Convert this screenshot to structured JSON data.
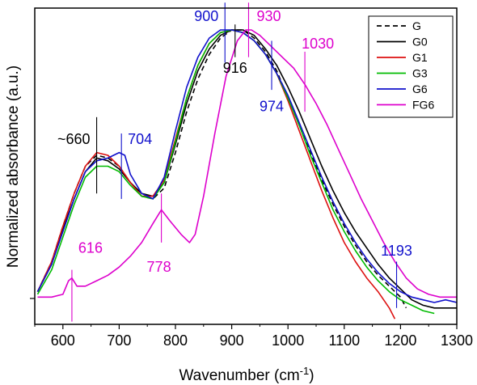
{
  "chart_data": {
    "type": "line",
    "title": "",
    "xlabel": "Wavenumber (cm",
    "xlabel_sup": "-1",
    "xlabel_end": ")",
    "ylabel": "Normalized absorbance (a.u.)",
    "xlim": [
      550,
      1300
    ],
    "ylim": [
      -0.08,
      1.08
    ],
    "x_ticks": [
      "600",
      "700",
      "800",
      "900",
      "1000",
      "1100",
      "1200",
      "1300"
    ],
    "legend_position": "top-right",
    "series": [
      {
        "name": "G",
        "color": "#000000",
        "dash": "6,4",
        "points": [
          [
            555,
            0.04
          ],
          [
            580,
            0.15
          ],
          [
            600,
            0.28
          ],
          [
            620,
            0.4
          ],
          [
            640,
            0.5
          ],
          [
            660,
            0.54
          ],
          [
            680,
            0.53
          ],
          [
            700,
            0.5
          ],
          [
            720,
            0.44
          ],
          [
            740,
            0.39
          ],
          [
            760,
            0.38
          ],
          [
            780,
            0.42
          ],
          [
            800,
            0.55
          ],
          [
            820,
            0.7
          ],
          [
            840,
            0.82
          ],
          [
            860,
            0.91
          ],
          [
            880,
            0.97
          ],
          [
            900,
            1.0
          ],
          [
            920,
            1.0
          ],
          [
            940,
            0.97
          ],
          [
            960,
            0.92
          ],
          [
            980,
            0.85
          ],
          [
            1000,
            0.75
          ],
          [
            1020,
            0.65
          ],
          [
            1040,
            0.55
          ],
          [
            1060,
            0.45
          ],
          [
            1080,
            0.36
          ],
          [
            1100,
            0.28
          ],
          [
            1120,
            0.21
          ],
          [
            1140,
            0.15
          ],
          [
            1160,
            0.1
          ],
          [
            1180,
            0.06
          ],
          [
            1200,
            0.02
          ],
          [
            1210,
            -0.02
          ]
        ]
      },
      {
        "name": "G0",
        "color": "#000000",
        "dash": "",
        "points": [
          [
            555,
            0.04
          ],
          [
            580,
            0.14
          ],
          [
            600,
            0.27
          ],
          [
            620,
            0.38
          ],
          [
            640,
            0.48
          ],
          [
            660,
            0.53
          ],
          [
            680,
            0.52
          ],
          [
            700,
            0.49
          ],
          [
            720,
            0.44
          ],
          [
            740,
            0.4
          ],
          [
            760,
            0.39
          ],
          [
            780,
            0.44
          ],
          [
            800,
            0.58
          ],
          [
            820,
            0.73
          ],
          [
            840,
            0.85
          ],
          [
            860,
            0.93
          ],
          [
            880,
            0.98
          ],
          [
            900,
            1.0
          ],
          [
            920,
            1.0
          ],
          [
            940,
            0.98
          ],
          [
            960,
            0.93
          ],
          [
            980,
            0.87
          ],
          [
            1000,
            0.79
          ],
          [
            1020,
            0.7
          ],
          [
            1040,
            0.6
          ],
          [
            1060,
            0.5
          ],
          [
            1080,
            0.41
          ],
          [
            1100,
            0.33
          ],
          [
            1120,
            0.26
          ],
          [
            1140,
            0.2
          ],
          [
            1160,
            0.14
          ],
          [
            1180,
            0.09
          ],
          [
            1200,
            0.05
          ],
          [
            1220,
            0.01
          ],
          [
            1240,
            -0.01
          ],
          [
            1260,
            -0.02
          ],
          [
            1280,
            -0.02
          ],
          [
            1300,
            -0.02
          ]
        ]
      },
      {
        "name": "G1",
        "color": "#dd1111",
        "dash": "",
        "points": [
          [
            555,
            0.04
          ],
          [
            580,
            0.15
          ],
          [
            600,
            0.28
          ],
          [
            620,
            0.4
          ],
          [
            640,
            0.5
          ],
          [
            660,
            0.55
          ],
          [
            680,
            0.54
          ],
          [
            700,
            0.5
          ],
          [
            720,
            0.44
          ],
          [
            740,
            0.39
          ],
          [
            760,
            0.39
          ],
          [
            780,
            0.45
          ],
          [
            800,
            0.6
          ],
          [
            820,
            0.75
          ],
          [
            840,
            0.87
          ],
          [
            860,
            0.95
          ],
          [
            880,
            0.99
          ],
          [
            900,
            1.0
          ],
          [
            920,
            0.99
          ],
          [
            940,
            0.96
          ],
          [
            960,
            0.91
          ],
          [
            980,
            0.84
          ],
          [
            1000,
            0.74
          ],
          [
            1020,
            0.63
          ],
          [
            1040,
            0.52
          ],
          [
            1060,
            0.41
          ],
          [
            1080,
            0.31
          ],
          [
            1100,
            0.22
          ],
          [
            1120,
            0.15
          ],
          [
            1140,
            0.09
          ],
          [
            1160,
            0.04
          ],
          [
            1180,
            -0.02
          ],
          [
            1190,
            -0.06
          ]
        ]
      },
      {
        "name": "G3",
        "color": "#00bb00",
        "dash": "",
        "points": [
          [
            555,
            0.03
          ],
          [
            580,
            0.12
          ],
          [
            600,
            0.24
          ],
          [
            620,
            0.36
          ],
          [
            640,
            0.46
          ],
          [
            660,
            0.5
          ],
          [
            680,
            0.5
          ],
          [
            700,
            0.48
          ],
          [
            720,
            0.43
          ],
          [
            740,
            0.39
          ],
          [
            760,
            0.38
          ],
          [
            780,
            0.44
          ],
          [
            800,
            0.59
          ],
          [
            820,
            0.75
          ],
          [
            840,
            0.87
          ],
          [
            860,
            0.95
          ],
          [
            880,
            0.99
          ],
          [
            900,
            1.0
          ],
          [
            920,
            0.99
          ],
          [
            940,
            0.96
          ],
          [
            960,
            0.91
          ],
          [
            980,
            0.84
          ],
          [
            1000,
            0.75
          ],
          [
            1020,
            0.65
          ],
          [
            1040,
            0.54
          ],
          [
            1060,
            0.44
          ],
          [
            1080,
            0.34
          ],
          [
            1100,
            0.26
          ],
          [
            1120,
            0.19
          ],
          [
            1140,
            0.13
          ],
          [
            1160,
            0.08
          ],
          [
            1180,
            0.04
          ],
          [
            1200,
            0.01
          ],
          [
            1220,
            -0.01
          ],
          [
            1240,
            -0.03
          ],
          [
            1260,
            -0.04
          ]
        ]
      },
      {
        "name": "G6",
        "color": "#1111cc",
        "dash": "",
        "points": [
          [
            555,
            0.04
          ],
          [
            580,
            0.14
          ],
          [
            600,
            0.26
          ],
          [
            620,
            0.38
          ],
          [
            640,
            0.48
          ],
          [
            660,
            0.52
          ],
          [
            680,
            0.53
          ],
          [
            700,
            0.55
          ],
          [
            710,
            0.54
          ],
          [
            720,
            0.47
          ],
          [
            740,
            0.4
          ],
          [
            760,
            0.38
          ],
          [
            780,
            0.46
          ],
          [
            800,
            0.63
          ],
          [
            820,
            0.79
          ],
          [
            840,
            0.9
          ],
          [
            860,
            0.97
          ],
          [
            880,
            1.0
          ],
          [
            900,
            1.0
          ],
          [
            920,
            0.99
          ],
          [
            940,
            0.96
          ],
          [
            960,
            0.91
          ],
          [
            980,
            0.84
          ],
          [
            1000,
            0.76
          ],
          [
            1020,
            0.66
          ],
          [
            1040,
            0.56
          ],
          [
            1060,
            0.46
          ],
          [
            1080,
            0.37
          ],
          [
            1100,
            0.29
          ],
          [
            1120,
            0.22
          ],
          [
            1140,
            0.16
          ],
          [
            1160,
            0.11
          ],
          [
            1180,
            0.07
          ],
          [
            1200,
            0.04
          ],
          [
            1220,
            0.02
          ],
          [
            1240,
            0.01
          ],
          [
            1260,
            0.0
          ],
          [
            1280,
            0.01
          ],
          [
            1300,
            0.0
          ]
        ]
      },
      {
        "name": "FG6",
        "color": "#dd00cc",
        "dash": "",
        "points": [
          [
            555,
            0.02
          ],
          [
            580,
            0.02
          ],
          [
            600,
            0.03
          ],
          [
            610,
            0.08
          ],
          [
            616,
            0.09
          ],
          [
            625,
            0.06
          ],
          [
            640,
            0.06
          ],
          [
            660,
            0.08
          ],
          [
            680,
            0.1
          ],
          [
            700,
            0.13
          ],
          [
            720,
            0.17
          ],
          [
            740,
            0.22
          ],
          [
            760,
            0.29
          ],
          [
            775,
            0.34
          ],
          [
            790,
            0.3
          ],
          [
            810,
            0.25
          ],
          [
            825,
            0.22
          ],
          [
            835,
            0.25
          ],
          [
            850,
            0.39
          ],
          [
            870,
            0.62
          ],
          [
            890,
            0.83
          ],
          [
            910,
            0.96
          ],
          [
            925,
            1.0
          ],
          [
            935,
            1.0
          ],
          [
            950,
            0.98
          ],
          [
            970,
            0.94
          ],
          [
            990,
            0.9
          ],
          [
            1010,
            0.86
          ],
          [
            1030,
            0.8
          ],
          [
            1050,
            0.73
          ],
          [
            1070,
            0.65
          ],
          [
            1090,
            0.56
          ],
          [
            1110,
            0.47
          ],
          [
            1130,
            0.38
          ],
          [
            1150,
            0.3
          ],
          [
            1170,
            0.22
          ],
          [
            1190,
            0.15
          ],
          [
            1210,
            0.09
          ],
          [
            1230,
            0.05
          ],
          [
            1250,
            0.03
          ],
          [
            1270,
            0.02
          ],
          [
            1300,
            0.02
          ]
        ]
      }
    ],
    "annotations": [
      {
        "text": "~660",
        "x": 660,
        "color": "#000000",
        "line_y": [
          0.4,
          0.68
        ],
        "label_anchor": "end",
        "label_dx": -8,
        "label_y": 0.6
      },
      {
        "text": "704",
        "x": 704,
        "color": "#1111cc",
        "line_y": [
          0.38,
          0.62
        ],
        "label_anchor": "start",
        "label_dx": 8,
        "label_y": 0.6
      },
      {
        "text": "900",
        "x": 888,
        "color": "#1111cc",
        "line_y": [
          0.88,
          1.1
        ],
        "label_anchor": "end",
        "label_dx": -8,
        "label_y": 1.05
      },
      {
        "text": "916",
        "x": 906,
        "color": "#000000",
        "line_y": [
          0.9,
          1.02
        ],
        "label_anchor": "middle",
        "label_dx": 0,
        "label_y": 0.86
      },
      {
        "text": "930",
        "x": 930,
        "color": "#dd00cc",
        "line_y": [
          0.9,
          1.1
        ],
        "label_anchor": "start",
        "label_dx": 10,
        "label_y": 1.05
      },
      {
        "text": "1030",
        "x": 1030,
        "color": "#dd00cc",
        "line_y": [
          0.7,
          0.92
        ],
        "label_anchor": "start",
        "label_dx": -4,
        "label_y": 0.95
      },
      {
        "text": "974",
        "x": 971,
        "color": "#1111cc",
        "line_y": [
          0.78,
          0.96
        ],
        "label_anchor": "middle",
        "label_dx": 0,
        "label_y": 0.72
      },
      {
        "text": "616",
        "x": 616,
        "color": "#dd00cc",
        "line_y": [
          -0.07,
          0.12
        ],
        "label_anchor": "start",
        "label_dx": 8,
        "label_y": 0.2
      },
      {
        "text": "778",
        "x": 775,
        "color": "#dd00cc",
        "line_y": [
          0.22,
          0.4
        ],
        "label_anchor": "end",
        "label_dx": 12,
        "label_y": 0.13
      },
      {
        "text": "1193",
        "x": 1193,
        "color": "#1111cc",
        "line_y": [
          -0.02,
          0.15
        ],
        "label_anchor": "middle",
        "label_dx": 0,
        "label_y": 0.19
      }
    ]
  }
}
